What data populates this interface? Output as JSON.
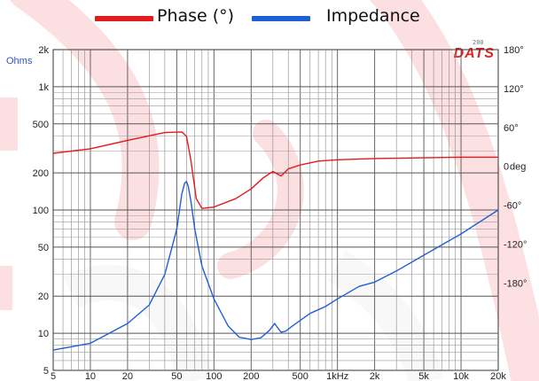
{
  "legend": {
    "items": [
      {
        "label": "Phase (°)",
        "color": "#e41a1c"
      },
      {
        "label": "Impedance",
        "color": "#1f5fd6"
      }
    ]
  },
  "brand": {
    "name": "DATS",
    "sub": "200",
    "color": "#e0231e"
  },
  "left_unit": "Ohms",
  "right_unit": "deg",
  "chart_data": {
    "type": "line",
    "x_scale": "log",
    "y_scale": "log",
    "xlim": [
      5,
      20000
    ],
    "ylim": [
      5,
      2000
    ],
    "phase_ylim": [
      -315,
      180
    ],
    "grid": true,
    "legend_position": "top",
    "x_ticks": [
      "5",
      "10",
      "20",
      "50",
      "100",
      "200",
      "500",
      "1kHz",
      "2k",
      "5k",
      "10k",
      "20k"
    ],
    "x_tick_values": [
      5,
      10,
      20,
      50,
      100,
      200,
      500,
      1000,
      2000,
      5000,
      10000,
      20000
    ],
    "y_ticks": [
      "2k",
      "1k",
      "500",
      "200",
      "100",
      "50",
      "20",
      "10",
      "5"
    ],
    "y_tick_values": [
      2000,
      1000,
      500,
      200,
      100,
      50,
      20,
      10,
      5
    ],
    "phase_ticks": [
      "180°",
      "120°",
      "60°",
      "0",
      "-60°",
      "-120°",
      "-180°"
    ],
    "phase_tick_values": [
      180,
      120,
      60,
      0,
      -60,
      -120,
      -180
    ],
    "series": [
      {
        "name": "Phase (°)",
        "axis": "right",
        "color": "#e41a1c",
        "x": [
          5,
          10,
          20,
          40,
          55,
          60,
          65,
          72,
          80,
          100,
          150,
          200,
          250,
          300,
          350,
          400,
          500,
          700,
          1000,
          2000,
          5000,
          10000,
          20000
        ],
        "y": [
          20,
          27,
          40,
          52,
          53,
          46,
          10,
          -50,
          -65,
          -63,
          -50,
          -35,
          -18,
          -8,
          -15,
          -4,
          2,
          8,
          10,
          12,
          13,
          14,
          14
        ]
      },
      {
        "name": "Impedance",
        "axis": "left",
        "color": "#1f5fd6",
        "x": [
          5,
          10,
          20,
          30,
          40,
          50,
          55,
          58,
          60,
          62,
          65,
          70,
          80,
          100,
          130,
          160,
          200,
          240,
          280,
          310,
          330,
          350,
          380,
          450,
          600,
          800,
          1000,
          1500,
          2000,
          3000,
          5000,
          10000,
          20000
        ],
        "y": [
          7.3,
          8.3,
          12,
          17,
          30,
          70,
          135,
          165,
          170,
          155,
          120,
          70,
          35,
          19,
          11.5,
          9.3,
          8.9,
          9.2,
          10.5,
          12,
          11,
          10.2,
          10.4,
          11.8,
          14.5,
          16.5,
          19,
          24,
          26,
          32,
          43,
          64,
          100
        ]
      }
    ]
  }
}
